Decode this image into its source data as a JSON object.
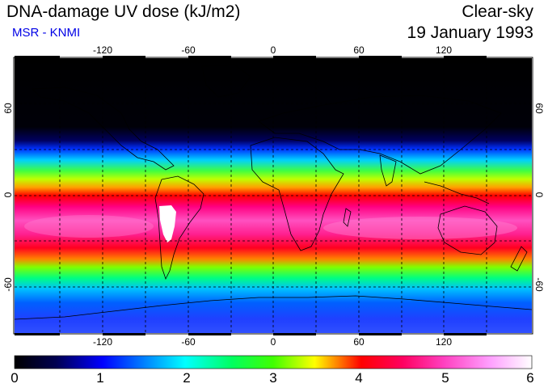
{
  "header": {
    "title": "DNA-damage UV dose (kJ/m2)",
    "subtitle": "MSR - KNMI",
    "condition": "Clear-sky",
    "date": "19 January 1993"
  },
  "map": {
    "lon_ticks": [
      "-120",
      "-60",
      "0",
      "60",
      "120"
    ],
    "lat_ticks_left": [
      "60",
      "0",
      "-60"
    ],
    "lat_ticks_right": [
      "60",
      "0",
      "-60"
    ],
    "lon_range": [
      -180,
      180
    ],
    "lat_range": [
      -90,
      90
    ]
  },
  "colorbar": {
    "ticks": [
      "0",
      "1",
      "2",
      "3",
      "4",
      "5",
      "6"
    ],
    "min": 0,
    "max": 6,
    "colors": [
      "#000000",
      "#000080",
      "#0000ff",
      "#00c8ff",
      "#00ff80",
      "#40ff00",
      "#ffff00",
      "#ff8000",
      "#ff0000",
      "#ff0080",
      "#ff40c0",
      "#ffa0ff",
      "#ffffff"
    ]
  }
}
